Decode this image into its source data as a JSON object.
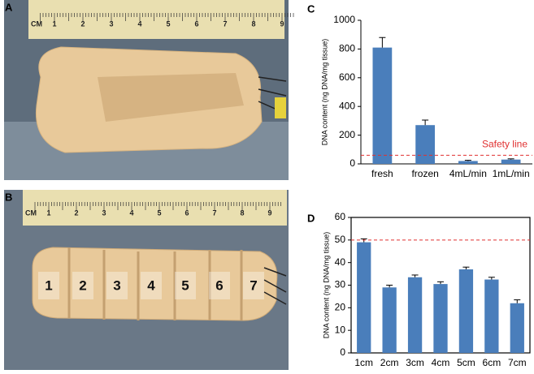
{
  "panel_labels": [
    "A",
    "B",
    "C",
    "D"
  ],
  "photo_a": {
    "ruler": [
      "CM",
      "1",
      "2",
      "3",
      "4",
      "5",
      "6",
      "7",
      "8",
      "9"
    ]
  },
  "photo_b": {
    "ruler": [
      "CM",
      "1",
      "2",
      "3",
      "4",
      "5",
      "6",
      "7",
      "8",
      "9"
    ],
    "segment_labels": [
      "1",
      "2",
      "3",
      "4",
      "5",
      "6",
      "7"
    ]
  },
  "chart_data": [
    {
      "type": "bar",
      "y_label": "DNA content (ng DNA/mg tissue)",
      "categories": [
        "fresh",
        "frozen",
        "4mL/min",
        "1mL/min"
      ],
      "values": [
        810,
        270,
        20,
        30
      ],
      "errors": [
        70,
        35,
        5,
        5
      ],
      "color": "#4a7ebb",
      "ylim": [
        0,
        1000
      ],
      "yticks": [
        0,
        200,
        400,
        600,
        800,
        1000
      ],
      "reference_line": {
        "value": 60,
        "label": "Safety line",
        "color": "#e03030"
      },
      "box": false
    },
    {
      "type": "bar",
      "y_label": "DNA content (ng DNA/mg tissue)",
      "categories": [
        "1cm",
        "2cm",
        "3cm",
        "4cm",
        "5cm",
        "6cm",
        "7cm"
      ],
      "values": [
        49,
        29,
        33.5,
        30.5,
        37,
        32.5,
        22
      ],
      "errors": [
        1.5,
        1,
        1,
        1,
        1,
        1,
        1.5
      ],
      "color": "#4a7ebb",
      "ylim": [
        0,
        60
      ],
      "yticks": [
        0,
        10,
        20,
        30,
        40,
        50,
        60
      ],
      "reference_line": {
        "value": 50,
        "color": "#e03030"
      },
      "box": true
    }
  ]
}
